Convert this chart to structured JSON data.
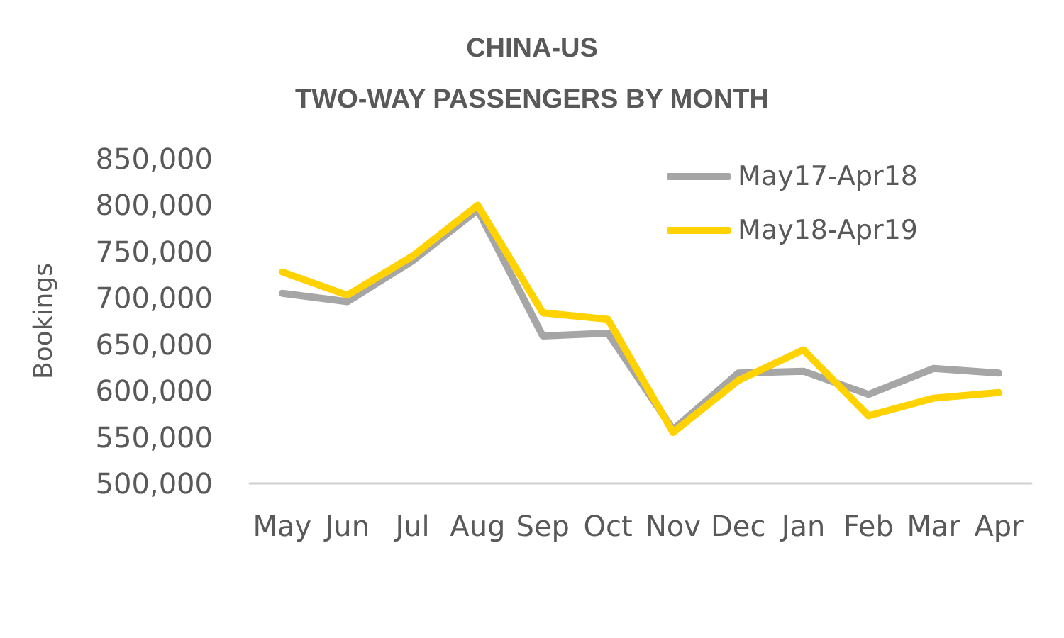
{
  "chart_data": {
    "type": "line",
    "title": "CHINA-US",
    "subtitle": "TWO-WAY PASSENGERS BY MONTH",
    "ylabel": "Bookings",
    "categories": [
      "May",
      "Jun",
      "Jul",
      "Aug",
      "Sep",
      "Oct",
      "Nov",
      "Dec",
      "Jan",
      "Feb",
      "Mar",
      "Apr"
    ],
    "series": [
      {
        "name": "May17-Apr18",
        "color": "#a6a6a6",
        "values": [
          705000,
          696000,
          740000,
          795000,
          659000,
          662000,
          558000,
          619000,
          621000,
          596000,
          624000,
          619000
        ]
      },
      {
        "name": "May18-Apr19",
        "color": "#ffd200",
        "values": [
          728000,
          703000,
          745000,
          800000,
          684000,
          677000,
          555000,
          611000,
          644000,
          573000,
          592000,
          598000
        ]
      }
    ],
    "ylim": [
      500000,
      850000
    ],
    "yticks": [
      {
        "value": 500000,
        "label": "500,000"
      },
      {
        "value": 550000,
        "label": "550,000"
      },
      {
        "value": 600000,
        "label": "600,000"
      },
      {
        "value": 650000,
        "label": "650,000"
      },
      {
        "value": 700000,
        "label": "700,000"
      },
      {
        "value": 750000,
        "label": "750,000"
      },
      {
        "value": 800000,
        "label": "800,000"
      },
      {
        "value": 850000,
        "label": "850,000"
      }
    ],
    "grid": false,
    "legend": "top right",
    "marker": "none",
    "line_style": "solid"
  }
}
